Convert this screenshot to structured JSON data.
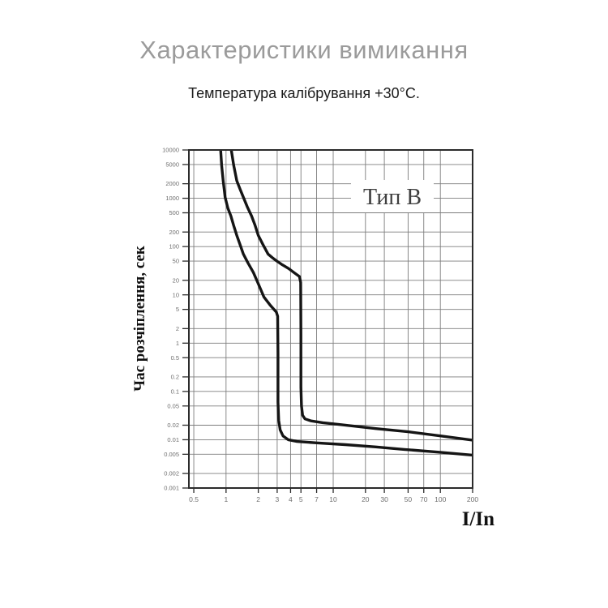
{
  "page": {
    "title": "Характеристики вимикання",
    "subtitle": "Температура калібрування +30°C."
  },
  "colors": {
    "background": "#ffffff",
    "title_gray": "#9b9b9b",
    "text": "#1b1b1b",
    "grid": "#7d7d7d",
    "frame": "#2b2b2b",
    "curve": "#151515",
    "tick_label": "#6e6e6e",
    "type_label": "#3f3f3f"
  },
  "chart_data": {
    "type": "line",
    "title": "Характеристики вимикання",
    "subtitle": "Температура калібрування +30°C.",
    "curve_label": "Тип B",
    "xlabel": "I/In",
    "ylabel": "Час розчіплення, сек",
    "x_scale": "log",
    "y_scale": "log",
    "grid": true,
    "legend": "none",
    "xlim": [
      0.45,
      200
    ],
    "ylim": [
      0.001,
      10000
    ],
    "x_ticks": [
      0.5,
      1,
      2,
      3,
      4,
      5,
      7,
      10,
      20,
      30,
      50,
      70,
      100,
      200
    ],
    "x_tick_labels": [
      "0.5",
      "1",
      "2",
      "3",
      "4",
      "5",
      "7",
      "10",
      "20",
      "30",
      "50",
      "70",
      "100",
      "200"
    ],
    "y_ticks": [
      10000,
      5000,
      2000,
      1000,
      500,
      200,
      100,
      50,
      20,
      10,
      5,
      2,
      1,
      0.5,
      0.2,
      0.1,
      0.05,
      0.02,
      0.01,
      0.005,
      0.002,
      0.001
    ],
    "y_tick_labels": [
      "10000",
      "5000",
      "2000",
      "1000",
      "500",
      "200",
      "100",
      "50",
      "20",
      "10",
      "5",
      "2",
      "1",
      "0.5",
      "0.2",
      "0.1",
      "0.05",
      "0.02",
      "0.01",
      "0.005",
      "0.002",
      "0.001"
    ],
    "magnetic_trip_range_In": [
      3,
      5
    ],
    "series": [
      {
        "name": "lower-trip-limit",
        "points": [
          [
            0.89,
            10000
          ],
          [
            0.91,
            4800
          ],
          [
            0.94,
            2300
          ],
          [
            0.98,
            1050
          ],
          [
            1.04,
            620
          ],
          [
            1.11,
            430
          ],
          [
            1.18,
            270
          ],
          [
            1.26,
            170
          ],
          [
            1.35,
            110
          ],
          [
            1.45,
            70
          ],
          [
            1.6,
            46
          ],
          [
            1.8,
            29
          ],
          [
            2.0,
            17
          ],
          [
            2.26,
            9.0
          ],
          [
            2.6,
            6.0
          ],
          [
            2.95,
            4.4
          ],
          [
            3.03,
            3.6
          ],
          [
            3.05,
            0.6
          ],
          [
            3.05,
            0.06
          ],
          [
            3.1,
            0.025
          ],
          [
            3.2,
            0.016
          ],
          [
            3.4,
            0.012
          ],
          [
            3.8,
            0.01
          ],
          [
            4.6,
            0.0092
          ],
          [
            7.0,
            0.0086
          ],
          [
            13,
            0.0079
          ],
          [
            25,
            0.0071
          ],
          [
            46,
            0.0063
          ],
          [
            100,
            0.0055
          ],
          [
            200,
            0.0048
          ]
        ]
      },
      {
        "name": "upper-trip-limit",
        "points": [
          [
            1.12,
            10000
          ],
          [
            1.18,
            4800
          ],
          [
            1.26,
            2300
          ],
          [
            1.35,
            1550
          ],
          [
            1.45,
            1050
          ],
          [
            1.58,
            660
          ],
          [
            1.73,
            430
          ],
          [
            1.86,
            280
          ],
          [
            2.0,
            170
          ],
          [
            2.2,
            112
          ],
          [
            2.47,
            70
          ],
          [
            2.7,
            59
          ],
          [
            2.95,
            51
          ],
          [
            3.35,
            42
          ],
          [
            3.84,
            35
          ],
          [
            4.3,
            29
          ],
          [
            4.84,
            24
          ],
          [
            4.97,
            18
          ],
          [
            5.0,
            1.5
          ],
          [
            5.0,
            0.12
          ],
          [
            5.06,
            0.05
          ],
          [
            5.18,
            0.032
          ],
          [
            5.45,
            0.027
          ],
          [
            6.2,
            0.0245
          ],
          [
            8.0,
            0.0225
          ],
          [
            12,
            0.0205
          ],
          [
            25,
            0.017
          ],
          [
            50,
            0.0146
          ],
          [
            100,
            0.012
          ],
          [
            200,
            0.0098
          ]
        ]
      }
    ]
  }
}
